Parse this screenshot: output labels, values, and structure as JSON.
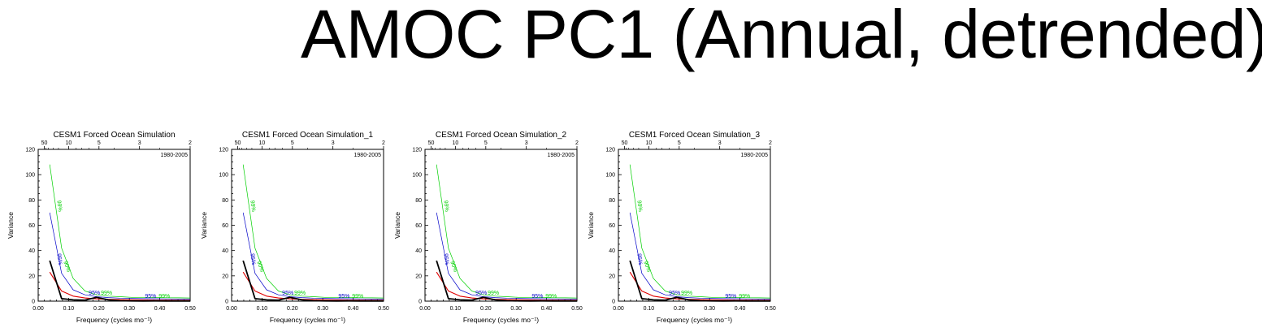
{
  "title": "AMOC PC1 (Annual, detrended)",
  "colors": {
    "spectrum": "#000000",
    "red_noise": "#e00000",
    "ci95": "#0000c8",
    "ci99": "#00d000"
  },
  "chart_data": [
    {
      "type": "line",
      "title": "CESM1 Forced Ocean Simulation",
      "period_label": "1980-2005",
      "xlabel": "Frequency (cycles mo⁻¹)",
      "ylabel": "Variance",
      "xlim": [
        0,
        0.5
      ],
      "ylim": [
        0,
        120
      ],
      "xticks": [
        "0.00",
        "0.10",
        "0.20",
        "0.30",
        "0.40",
        "0.50"
      ],
      "yticks": [
        "0",
        "20",
        "40",
        "60",
        "80",
        "100",
        "120"
      ],
      "top_axis_ticks": [
        "50",
        "10",
        "5",
        "3",
        "2"
      ],
      "confidence_labels": [
        {
          "text": "99%",
          "x": 0.065,
          "y": 75,
          "series": "ci99",
          "rotate": 82
        },
        {
          "text": "95%",
          "x": 0.065,
          "y": 33,
          "series": "ci95",
          "rotate": 82
        },
        {
          "text": "90%",
          "x": 0.09,
          "y": 27,
          "series": "ci99",
          "rotate": 70
        },
        {
          "text": "95%",
          "x": 0.185,
          "y": 5,
          "series": "ci95",
          "rotate": 0
        },
        {
          "text": "99%",
          "x": 0.225,
          "y": 5,
          "series": "ci99",
          "rotate": 0
        },
        {
          "text": "95%",
          "x": 0.37,
          "y": 2.5,
          "series": "ci95",
          "rotate": 0
        },
        {
          "text": "99%",
          "x": 0.415,
          "y": 2.5,
          "series": "ci99",
          "rotate": 0
        }
      ],
      "series": [
        {
          "key": "ci99",
          "x": [
            0.038,
            0.077,
            0.115,
            0.154,
            0.192,
            0.231,
            0.269,
            0.308,
            0.346,
            0.385,
            0.423,
            0.462,
            0.5
          ],
          "values": [
            108,
            42,
            18,
            8,
            5,
            4,
            3.5,
            3,
            3,
            2.8,
            2.7,
            2.6,
            2.5
          ]
        },
        {
          "key": "ci95",
          "x": [
            0.038,
            0.077,
            0.115,
            0.154,
            0.192,
            0.231,
            0.269,
            0.308,
            0.346,
            0.385,
            0.423,
            0.462,
            0.5
          ],
          "values": [
            70,
            22,
            9,
            5,
            3.5,
            2.8,
            2.4,
            2.2,
            2,
            1.9,
            1.8,
            1.7,
            1.6
          ]
        },
        {
          "key": "red_noise",
          "x": [
            0.038,
            0.077,
            0.115,
            0.154,
            0.192,
            0.231,
            0.269,
            0.308,
            0.346,
            0.385,
            0.423,
            0.462,
            0.5
          ],
          "values": [
            23,
            8,
            4,
            2.5,
            1.8,
            1.4,
            1.2,
            1,
            0.9,
            0.8,
            0.75,
            0.7,
            0.7
          ]
        },
        {
          "key": "spectrum",
          "x": [
            0.038,
            0.077,
            0.115,
            0.154,
            0.192,
            0.231,
            0.269,
            0.308,
            0.346,
            0.385,
            0.423,
            0.462,
            0.5
          ],
          "values": [
            32,
            2,
            1,
            0.8,
            3,
            1,
            0.3,
            0.2,
            0.1,
            0.2,
            0.1,
            0.1,
            0.1
          ]
        }
      ]
    },
    {
      "type": "line",
      "title": "CESM1 Forced Ocean Simulation_1",
      "period_label": "1980-2005",
      "xlabel": "Frequency (cycles mo⁻¹)",
      "ylabel": "Variance",
      "xlim": [
        0,
        0.5
      ],
      "ylim": [
        0,
        120
      ],
      "xticks": [
        "0.00",
        "0.10",
        "0.20",
        "0.30",
        "0.40",
        "0.50"
      ],
      "yticks": [
        "0",
        "20",
        "40",
        "60",
        "80",
        "100",
        "120"
      ],
      "top_axis_ticks": [
        "50",
        "10",
        "5",
        "3",
        "2"
      ],
      "confidence_labels": [
        {
          "text": "99%",
          "x": 0.065,
          "y": 75,
          "series": "ci99",
          "rotate": 82
        },
        {
          "text": "95%",
          "x": 0.065,
          "y": 33,
          "series": "ci95",
          "rotate": 82
        },
        {
          "text": "90%",
          "x": 0.09,
          "y": 27,
          "series": "ci99",
          "rotate": 70
        },
        {
          "text": "95%",
          "x": 0.185,
          "y": 5,
          "series": "ci95",
          "rotate": 0
        },
        {
          "text": "99%",
          "x": 0.225,
          "y": 5,
          "series": "ci99",
          "rotate": 0
        },
        {
          "text": "95%",
          "x": 0.37,
          "y": 2.5,
          "series": "ci95",
          "rotate": 0
        },
        {
          "text": "99%",
          "x": 0.415,
          "y": 2.5,
          "series": "ci99",
          "rotate": 0
        }
      ],
      "series": [
        {
          "key": "ci99",
          "x": [
            0.038,
            0.077,
            0.115,
            0.154,
            0.192,
            0.231,
            0.269,
            0.308,
            0.346,
            0.385,
            0.423,
            0.462,
            0.5
          ],
          "values": [
            108,
            42,
            18,
            8,
            5,
            4,
            3.5,
            3,
            3,
            2.8,
            2.7,
            2.6,
            2.5
          ]
        },
        {
          "key": "ci95",
          "x": [
            0.038,
            0.077,
            0.115,
            0.154,
            0.192,
            0.231,
            0.269,
            0.308,
            0.346,
            0.385,
            0.423,
            0.462,
            0.5
          ],
          "values": [
            70,
            22,
            9,
            5,
            3.5,
            2.8,
            2.4,
            2.2,
            2,
            1.9,
            1.8,
            1.7,
            1.6
          ]
        },
        {
          "key": "red_noise",
          "x": [
            0.038,
            0.077,
            0.115,
            0.154,
            0.192,
            0.231,
            0.269,
            0.308,
            0.346,
            0.385,
            0.423,
            0.462,
            0.5
          ],
          "values": [
            23,
            8,
            4,
            2.5,
            1.8,
            1.4,
            1.2,
            1,
            0.9,
            0.8,
            0.75,
            0.7,
            0.7
          ]
        },
        {
          "key": "spectrum",
          "x": [
            0.038,
            0.077,
            0.115,
            0.154,
            0.192,
            0.231,
            0.269,
            0.308,
            0.346,
            0.385,
            0.423,
            0.462,
            0.5
          ],
          "values": [
            32,
            2,
            1,
            0.8,
            3,
            1,
            0.3,
            0.2,
            0.1,
            0.2,
            0.1,
            0.1,
            0.1
          ]
        }
      ]
    },
    {
      "type": "line",
      "title": "CESM1 Forced Ocean Simulation_2",
      "period_label": "1980-2005",
      "xlabel": "Frequency (cycles mo⁻¹)",
      "ylabel": "Variance",
      "xlim": [
        0,
        0.5
      ],
      "ylim": [
        0,
        120
      ],
      "xticks": [
        "0.00",
        "0.10",
        "0.20",
        "0.30",
        "0.40",
        "0.50"
      ],
      "yticks": [
        "0",
        "20",
        "40",
        "60",
        "80",
        "100",
        "120"
      ],
      "top_axis_ticks": [
        "50",
        "10",
        "5",
        "3",
        "2"
      ],
      "confidence_labels": [
        {
          "text": "99%",
          "x": 0.065,
          "y": 75,
          "series": "ci99",
          "rotate": 82
        },
        {
          "text": "95%",
          "x": 0.065,
          "y": 33,
          "series": "ci95",
          "rotate": 82
        },
        {
          "text": "90%",
          "x": 0.09,
          "y": 27,
          "series": "ci99",
          "rotate": 70
        },
        {
          "text": "95%",
          "x": 0.185,
          "y": 5,
          "series": "ci95",
          "rotate": 0
        },
        {
          "text": "99%",
          "x": 0.225,
          "y": 5,
          "series": "ci99",
          "rotate": 0
        },
        {
          "text": "95%",
          "x": 0.37,
          "y": 2.5,
          "series": "ci95",
          "rotate": 0
        },
        {
          "text": "99%",
          "x": 0.415,
          "y": 2.5,
          "series": "ci99",
          "rotate": 0
        }
      ],
      "series": [
        {
          "key": "ci99",
          "x": [
            0.038,
            0.077,
            0.115,
            0.154,
            0.192,
            0.231,
            0.269,
            0.308,
            0.346,
            0.385,
            0.423,
            0.462,
            0.5
          ],
          "values": [
            108,
            42,
            18,
            8,
            5,
            4,
            3.5,
            3,
            3,
            2.8,
            2.7,
            2.6,
            2.5
          ]
        },
        {
          "key": "ci95",
          "x": [
            0.038,
            0.077,
            0.115,
            0.154,
            0.192,
            0.231,
            0.269,
            0.308,
            0.346,
            0.385,
            0.423,
            0.462,
            0.5
          ],
          "values": [
            70,
            22,
            9,
            5,
            3.5,
            2.8,
            2.4,
            2.2,
            2,
            1.9,
            1.8,
            1.7,
            1.6
          ]
        },
        {
          "key": "red_noise",
          "x": [
            0.038,
            0.077,
            0.115,
            0.154,
            0.192,
            0.231,
            0.269,
            0.308,
            0.346,
            0.385,
            0.423,
            0.462,
            0.5
          ],
          "values": [
            23,
            8,
            4,
            2.5,
            1.8,
            1.4,
            1.2,
            1,
            0.9,
            0.8,
            0.75,
            0.7,
            0.7
          ]
        },
        {
          "key": "spectrum",
          "x": [
            0.038,
            0.077,
            0.115,
            0.154,
            0.192,
            0.231,
            0.269,
            0.308,
            0.346,
            0.385,
            0.423,
            0.462,
            0.5
          ],
          "values": [
            32,
            2,
            1,
            0.8,
            3,
            1,
            0.3,
            0.2,
            0.1,
            0.2,
            0.1,
            0.1,
            0.1
          ]
        }
      ]
    },
    {
      "type": "line",
      "title": "CESM1 Forced Ocean Simulation_3",
      "period_label": "1980-2005",
      "xlabel": "Frequency (cycles mo⁻¹)",
      "ylabel": "Variance",
      "xlim": [
        0,
        0.5
      ],
      "ylim": [
        0,
        120
      ],
      "xticks": [
        "0.00",
        "0.10",
        "0.20",
        "0.30",
        "0.40",
        "0.50"
      ],
      "yticks": [
        "0",
        "20",
        "40",
        "60",
        "80",
        "100",
        "120"
      ],
      "top_axis_ticks": [
        "50",
        "10",
        "5",
        "3",
        "2"
      ],
      "confidence_labels": [
        {
          "text": "99%",
          "x": 0.065,
          "y": 75,
          "series": "ci99",
          "rotate": 82
        },
        {
          "text": "95%",
          "x": 0.065,
          "y": 33,
          "series": "ci95",
          "rotate": 82
        },
        {
          "text": "90%",
          "x": 0.09,
          "y": 27,
          "series": "ci99",
          "rotate": 70
        },
        {
          "text": "95%",
          "x": 0.185,
          "y": 5,
          "series": "ci95",
          "rotate": 0
        },
        {
          "text": "99%",
          "x": 0.225,
          "y": 5,
          "series": "ci99",
          "rotate": 0
        },
        {
          "text": "95%",
          "x": 0.37,
          "y": 2.5,
          "series": "ci95",
          "rotate": 0
        },
        {
          "text": "99%",
          "x": 0.415,
          "y": 2.5,
          "series": "ci99",
          "rotate": 0
        }
      ],
      "series": [
        {
          "key": "ci99",
          "x": [
            0.038,
            0.077,
            0.115,
            0.154,
            0.192,
            0.231,
            0.269,
            0.308,
            0.346,
            0.385,
            0.423,
            0.462,
            0.5
          ],
          "values": [
            108,
            42,
            18,
            8,
            5,
            4,
            3.5,
            3,
            3,
            2.8,
            2.7,
            2.6,
            2.5
          ]
        },
        {
          "key": "ci95",
          "x": [
            0.038,
            0.077,
            0.115,
            0.154,
            0.192,
            0.231,
            0.269,
            0.308,
            0.346,
            0.385,
            0.423,
            0.462,
            0.5
          ],
          "values": [
            70,
            22,
            9,
            5,
            3.5,
            2.8,
            2.4,
            2.2,
            2,
            1.9,
            1.8,
            1.7,
            1.6
          ]
        },
        {
          "key": "red_noise",
          "x": [
            0.038,
            0.077,
            0.115,
            0.154,
            0.192,
            0.231,
            0.269,
            0.308,
            0.346,
            0.385,
            0.423,
            0.462,
            0.5
          ],
          "values": [
            23,
            8,
            4,
            2.5,
            1.8,
            1.4,
            1.2,
            1,
            0.9,
            0.8,
            0.75,
            0.7,
            0.7
          ]
        },
        {
          "key": "spectrum",
          "x": [
            0.038,
            0.077,
            0.115,
            0.154,
            0.192,
            0.231,
            0.269,
            0.308,
            0.346,
            0.385,
            0.423,
            0.462,
            0.5
          ],
          "values": [
            32,
            2,
            1,
            0.8,
            3,
            1,
            0.3,
            0.2,
            0.1,
            0.2,
            0.1,
            0.1,
            0.1
          ]
        }
      ]
    }
  ]
}
